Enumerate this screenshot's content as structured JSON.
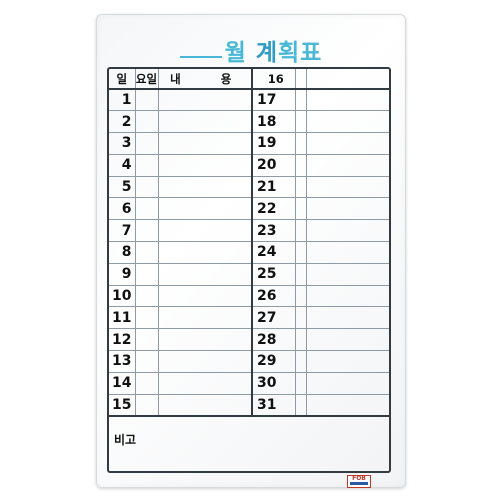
{
  "title": {
    "month_suffix": "월",
    "plan_word_1": "계",
    "plan_word_2": "획표"
  },
  "table": {
    "header": {
      "day": "일",
      "weekday": "요일",
      "content": "내 용",
      "second_first_day": "16"
    },
    "left_days": [
      "1",
      "2",
      "3",
      "4",
      "5",
      "6",
      "7",
      "8",
      "9",
      "10",
      "11",
      "12",
      "13",
      "14",
      "15"
    ],
    "right_days": [
      "17",
      "18",
      "19",
      "20",
      "21",
      "22",
      "23",
      "24",
      "25",
      "26",
      "27",
      "28",
      "29",
      "30",
      "31"
    ]
  },
  "notes": {
    "label": "비고"
  },
  "logo": {
    "text": "FOB"
  },
  "colors": {
    "title": "#49b8d6",
    "grid_lines": "#8f9aa3",
    "frame": "#333a40"
  }
}
